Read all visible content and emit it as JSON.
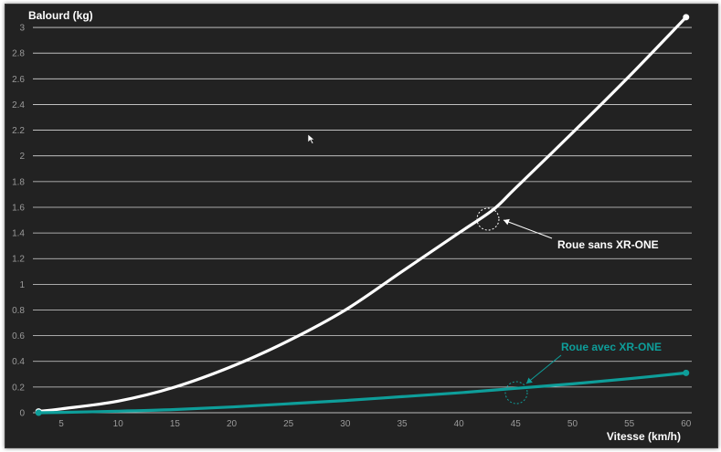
{
  "chart_data": {
    "type": "line",
    "xlabel": "Vitesse (km/h)",
    "ylabel": "Balourd (kg)",
    "xlim": [
      2.5,
      60.5
    ],
    "ylim": [
      0,
      3.1
    ],
    "x_ticks": [
      "5",
      "10",
      "15",
      "20",
      "25",
      "30",
      "35",
      "40",
      "45",
      "50",
      "55",
      "60"
    ],
    "y_ticks": [
      "0",
      "0.2",
      "0.4",
      "0.6",
      "0.8",
      "1",
      "1.2",
      "1.4",
      "1.6",
      "1.8",
      "2",
      "2.2",
      "2.4",
      "2.6",
      "2.8",
      "3"
    ],
    "grid": "horizontal",
    "series": [
      {
        "name": "Roue sans XR-ONE",
        "color": "#ffffff",
        "x": [
          3,
          5,
          10,
          15,
          20,
          25,
          30,
          35,
          40,
          43,
          45,
          50,
          55,
          60
        ],
        "y": [
          0.01,
          0.03,
          0.09,
          0.2,
          0.36,
          0.56,
          0.8,
          1.1,
          1.4,
          1.58,
          1.75,
          2.18,
          2.62,
          3.08
        ]
      },
      {
        "name": "Roue avec XR-ONE",
        "color": "#0e9e9a",
        "x": [
          3,
          5,
          10,
          15,
          20,
          25,
          30,
          35,
          40,
          45,
          50,
          55,
          60
        ],
        "y": [
          0.0,
          0.003,
          0.012,
          0.025,
          0.045,
          0.07,
          0.095,
          0.125,
          0.155,
          0.19,
          0.225,
          0.265,
          0.31
        ]
      }
    ],
    "annotations": [
      {
        "text": "Roue sans XR-ONE",
        "color": "#ffffff",
        "at": [
          43,
          1.5
        ]
      },
      {
        "text": "Roue avec XR-ONE",
        "color": "#0e9e9a",
        "at": [
          45,
          0.17
        ]
      }
    ]
  }
}
